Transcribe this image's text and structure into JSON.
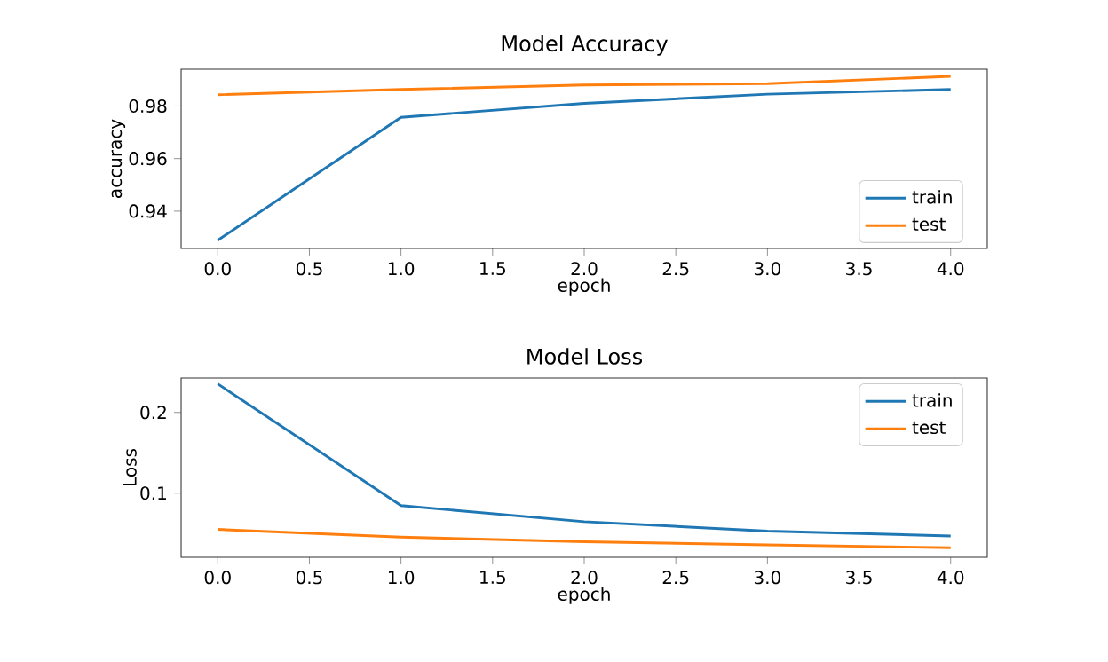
{
  "chart_data": [
    {
      "type": "line",
      "title": "Model Accuracy",
      "xlabel": "epoch",
      "ylabel": "accuracy",
      "x": [
        0,
        1,
        2,
        3,
        4
      ],
      "series": [
        {
          "name": "train",
          "color": "#1f77b4",
          "values": [
            0.9289,
            0.9757,
            0.981,
            0.9845,
            0.9863
          ]
        },
        {
          "name": "test",
          "color": "#ff7f0e",
          "values": [
            0.9843,
            0.9863,
            0.988,
            0.9885,
            0.9913
          ]
        }
      ],
      "xlim": [
        -0.2,
        4.2
      ],
      "ylim": [
        0.9258,
        0.994
      ],
      "xticks": [
        {
          "value": 0,
          "label": "0.0"
        },
        {
          "value": 0.5,
          "label": "0.5"
        },
        {
          "value": 1,
          "label": "1.0"
        },
        {
          "value": 1.5,
          "label": "1.5"
        },
        {
          "value": 2,
          "label": "2.0"
        },
        {
          "value": 2.5,
          "label": "2.5"
        },
        {
          "value": 3,
          "label": "3.0"
        },
        {
          "value": 3.5,
          "label": "3.5"
        },
        {
          "value": 4,
          "label": "4.0"
        }
      ],
      "yticks": [
        0.94,
        0.96,
        0.98
      ],
      "legend": "bottom right",
      "grid": false,
      "marker": "none",
      "line_style": "solid"
    },
    {
      "type": "line",
      "title": "Model Loss",
      "xlabel": "epoch",
      "ylabel": "Loss",
      "x": [
        0,
        1,
        2,
        3,
        4
      ],
      "series": [
        {
          "name": "train",
          "color": "#1f77b4",
          "values": [
            0.2353,
            0.0846,
            0.0647,
            0.053,
            0.047
          ]
        },
        {
          "name": "test",
          "color": "#ff7f0e",
          "values": [
            0.0551,
            0.0456,
            0.0397,
            0.036,
            0.0324
          ]
        }
      ],
      "xlim": [
        -0.2,
        4.2
      ],
      "ylim": [
        0.0206,
        0.2426
      ],
      "xticks": [
        {
          "value": 0,
          "label": "0.0"
        },
        {
          "value": 0.5,
          "label": "0.5"
        },
        {
          "value": 1,
          "label": "1.0"
        },
        {
          "value": 1.5,
          "label": "1.5"
        },
        {
          "value": 2,
          "label": "2.0"
        },
        {
          "value": 2.5,
          "label": "2.5"
        },
        {
          "value": 3,
          "label": "3.0"
        },
        {
          "value": 3.5,
          "label": "3.5"
        },
        {
          "value": 4,
          "label": "4.0"
        }
      ],
      "yticks": [
        0.1,
        0.2
      ],
      "legend": "top right",
      "grid": false,
      "marker": "none",
      "line_style": "solid"
    }
  ]
}
